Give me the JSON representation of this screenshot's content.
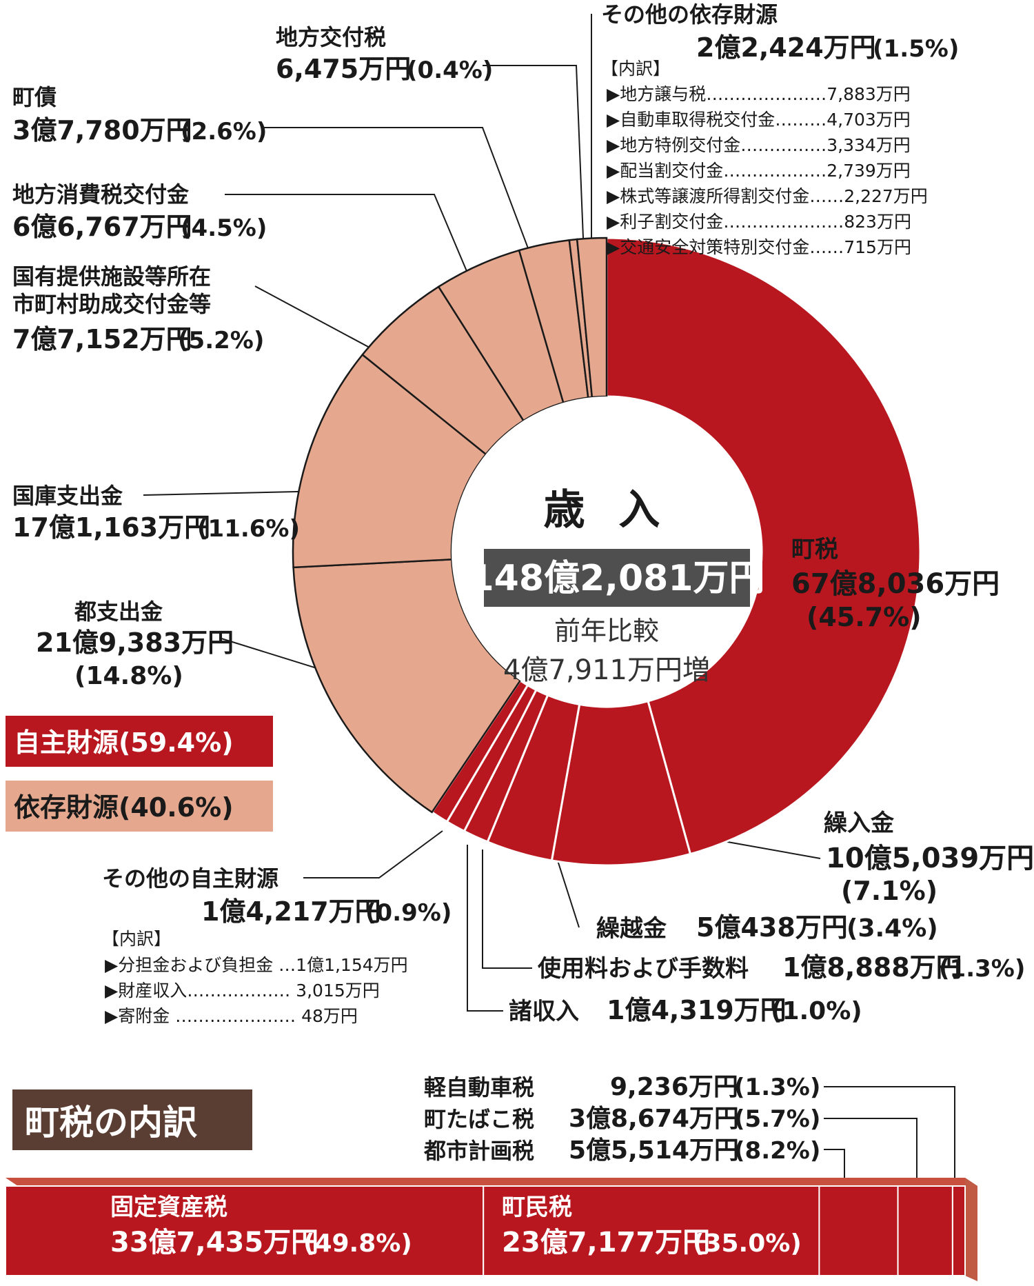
{
  "colors": {
    "own": "#b8171f",
    "dep": "#e5a88e",
    "dark": "#1a1a1a",
    "gray_box": "#4f4f4f",
    "title_box": "#5a3d33"
  },
  "chart_data": [
    {
      "type": "pie",
      "title": "歳 入",
      "total": "148億2,081万円",
      "compare_label": "前年比較",
      "compare_value": "4億7,911万円増",
      "slices": [
        {
          "name": "町税",
          "amount": "67億8,036万円",
          "pct_label": "(45.7%)",
          "value": 45.7,
          "group": "own"
        },
        {
          "name": "繰入金",
          "amount": "10億5,039万円",
          "pct_label": "(7.1%)",
          "value": 7.1,
          "group": "own"
        },
        {
          "name": "繰越金",
          "amount": "5億438万円",
          "pct_label": "(3.4%)",
          "value": 3.4,
          "group": "own"
        },
        {
          "name": "使用料および手数料",
          "amount": "1億8,888万円",
          "pct_label": "(1.3%)",
          "value": 1.3,
          "group": "own"
        },
        {
          "name": "諸収入",
          "amount": "1億4,319万円",
          "pct_label": "(1.0%)",
          "value": 1.0,
          "group": "own"
        },
        {
          "name": "その他の自主財源",
          "amount": "1億4,217万円",
          "pct_label": "(0.9%)",
          "value": 0.9,
          "group": "own"
        },
        {
          "name": "都支出金",
          "amount": "21億9,383万円",
          "pct_label": "(14.8%)",
          "value": 14.8,
          "group": "dep"
        },
        {
          "name": "国庫支出金",
          "amount": "17億1,163万円",
          "pct_label": "(11.6%)",
          "value": 11.6,
          "group": "dep"
        },
        {
          "name": "国有提供施設等所在市町村助成交付金等",
          "amount": "7億7,152万円",
          "pct_label": "(5.2%)",
          "value": 5.2,
          "group": "dep"
        },
        {
          "name": "地方消費税交付金",
          "amount": "6億6,767万円",
          "pct_label": "(4.5%)",
          "value": 4.5,
          "group": "dep"
        },
        {
          "name": "町債",
          "amount": "3億7,780万円",
          "pct_label": "(2.6%)",
          "value": 2.6,
          "group": "dep"
        },
        {
          "name": "地方交付税",
          "amount": "6,475万円",
          "pct_label": "(0.4%)",
          "value": 0.4,
          "group": "dep"
        },
        {
          "name": "その他の依存財源",
          "amount": "2億2,424万円",
          "pct_label": "(1.5%)",
          "value": 1.5,
          "group": "dep"
        }
      ],
      "legend": [
        {
          "label": "自主財源(59.4%)",
          "group": "own"
        },
        {
          "label": "依存財源(40.6%)",
          "group": "dep"
        }
      ],
      "breakdown_dep": {
        "heading": "【内訳】",
        "items": [
          {
            "text": "▶地方譲与税…………………7,883万円"
          },
          {
            "text": "▶自動車取得税交付金………4,703万円"
          },
          {
            "text": "▶地方特例交付金……………3,334万円"
          },
          {
            "text": "▶配当割交付金………………2,739万円"
          },
          {
            "text": "▶株式等譲渡所得割交付金……2,227万円"
          },
          {
            "text": "▶利子割交付金…………………823万円"
          },
          {
            "text": "▶交通安全対策特別交付金……715万円"
          }
        ]
      },
      "breakdown_own": {
        "heading": "【内訳】",
        "items": [
          {
            "text": "▶分担金および負担金 …1億1,154万円"
          },
          {
            "text": "▶財産収入……………… 3,015万円"
          },
          {
            "text": "▶寄附金 ………………… 48万円"
          }
        ]
      }
    },
    {
      "type": "bar",
      "title": "町税の内訳",
      "segments": [
        {
          "name": "固定資産税",
          "amount": "33億7,435万円",
          "pct_label": "(49.8%)",
          "value": 49.8
        },
        {
          "name": "町民税",
          "amount": "23億7,177万円",
          "pct_label": "(35.0%)",
          "value": 35.0
        },
        {
          "name": "都市計画税",
          "amount": "5億5,514万円",
          "pct_label": "(8.2%)",
          "value": 8.2
        },
        {
          "name": "町たばこ税",
          "amount": "3億8,674万円",
          "pct_label": "(5.7%)",
          "value": 5.7
        },
        {
          "name": "軽自動車税",
          "amount": "9,236万円",
          "pct_label": "(1.3%)",
          "value": 1.3
        }
      ]
    }
  ]
}
